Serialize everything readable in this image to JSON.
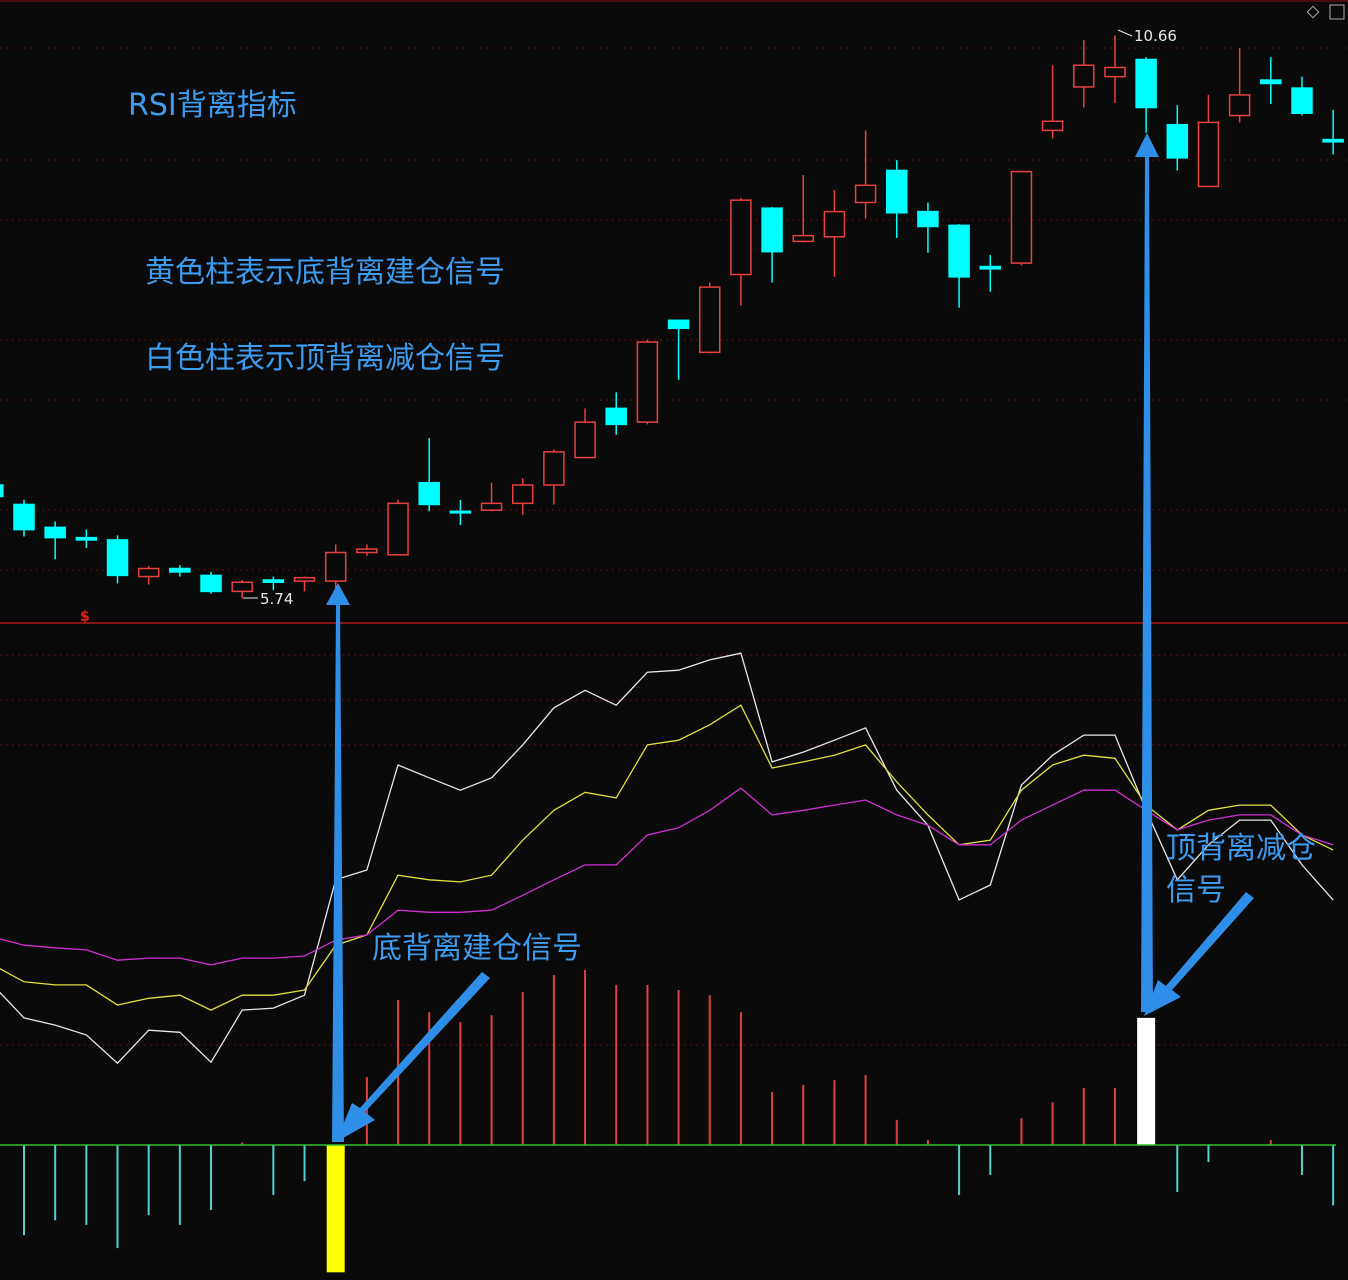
{
  "chart_data": {
    "type": "candlestick",
    "title": "RSI背离指标",
    "annotations": [
      "黄色柱表示底背离建仓信号",
      "白色柱表示顶背离减仓信号",
      "底背离建仓信号",
      "顶背离减仓信号",
      "10.66",
      "5.74",
      "$"
    ],
    "up_color": "#e84040",
    "down_color": "#00ffff",
    "ylim": [
      5.55,
      10.97
    ],
    "open": [
      6.73,
      6.56,
      6.36,
      6.27,
      6.25,
      5.93,
      6.0,
      5.94,
      5.8,
      5.9,
      5.89,
      5.89,
      6.14,
      6.12,
      6.75,
      6.5,
      6.51,
      6.57,
      6.73,
      6.97,
      7.4,
      7.28,
      8.17,
      7.89,
      8.57,
      9.15,
      8.86,
      8.9,
      9.2,
      9.48,
      9.12,
      9.0,
      8.64,
      8.67,
      9.83,
      10.21,
      10.3,
      10.45,
      9.88,
      9.34,
      9.96,
      10.27,
      10.2,
      9.75
    ],
    "high": [
      6.77,
      6.6,
      6.41,
      6.34,
      6.29,
      6.02,
      6.03,
      5.97,
      5.9,
      5.93,
      5.93,
      6.21,
      6.21,
      6.6,
      7.14,
      6.6,
      6.75,
      6.79,
      7.04,
      7.4,
      7.54,
      8.0,
      8.17,
      8.5,
      9.24,
      9.16,
      9.44,
      9.31,
      9.83,
      9.57,
      9.2,
      9.01,
      8.74,
      9.47,
      10.4,
      10.62,
      10.66,
      10.47,
      10.05,
      10.14,
      10.55,
      10.47,
      10.3,
      10.01
    ],
    "low": [
      6.6,
      6.28,
      6.08,
      6.18,
      5.87,
      5.86,
      5.93,
      5.78,
      5.74,
      5.81,
      5.8,
      5.83,
      6.11,
      6.12,
      6.5,
      6.38,
      6.5,
      6.47,
      6.56,
      6.97,
      7.17,
      7.26,
      7.65,
      7.88,
      8.3,
      8.5,
      8.85,
      8.55,
      9.06,
      8.89,
      8.76,
      8.28,
      8.42,
      8.65,
      9.76,
      10.03,
      10.07,
      9.81,
      9.48,
      9.34,
      9.9,
      10.06,
      9.96,
      9.62
    ],
    "close": [
      6.63,
      6.34,
      6.27,
      6.25,
      5.94,
      6.0,
      5.97,
      5.8,
      5.88,
      5.88,
      5.92,
      6.14,
      6.17,
      6.57,
      6.56,
      6.49,
      6.57,
      6.73,
      7.02,
      7.28,
      7.26,
      7.98,
      8.1,
      8.46,
      9.22,
      8.77,
      8.91,
      9.12,
      9.35,
      9.11,
      8.99,
      8.55,
      8.62,
      9.47,
      9.91,
      10.4,
      10.38,
      10.03,
      9.59,
      9.9,
      10.14,
      10.24,
      9.98,
      9.73
    ],
    "indicator": {
      "ylim": [
        -26,
        100
      ],
      "series": [
        {
          "name": "RSI1",
          "color": "#e8e8e8",
          "values": [
            31.1,
            24.7,
            23.3,
            21.4,
            15.9,
            22.3,
            21.9,
            16.1,
            26.2,
            26.6,
            29.1,
            51.5,
            53.4,
            73.8,
            71.3,
            68.9,
            71.3,
            77.7,
            84.9,
            88.3,
            85.4,
            91.8,
            92.2,
            94.2,
            95.5,
            74.4,
            76.3,
            78.6,
            81.0,
            68.9,
            62.1,
            47.6,
            50.5,
            69.9,
            75.7,
            79.6,
            79.6,
            65.0,
            51.5,
            58.3,
            63.1,
            63.1,
            54.4,
            47.6
          ]
        },
        {
          "name": "RSI2",
          "color": "#e0e040",
          "values": [
            35.0,
            31.7,
            31.1,
            31.1,
            27.2,
            28.5,
            29.1,
            26.2,
            29.1,
            29.1,
            30.1,
            38.8,
            40.8,
            52.4,
            51.5,
            51.1,
            52.4,
            59.2,
            65.0,
            68.5,
            67.4,
            77.7,
            78.6,
            81.6,
            85.4,
            73.2,
            74.4,
            75.7,
            77.7,
            70.5,
            64.1,
            58.3,
            59.2,
            68.9,
            73.8,
            75.7,
            75.1,
            66.0,
            61.2,
            65.0,
            66.0,
            66.0,
            60.2,
            57.3
          ]
        },
        {
          "name": "RSI3",
          "color": "#d030d0",
          "values": [
            40.4,
            38.8,
            38.3,
            37.9,
            35.9,
            36.3,
            36.3,
            35.0,
            36.3,
            36.3,
            36.7,
            39.8,
            40.8,
            45.6,
            45.2,
            45.2,
            45.6,
            48.5,
            51.5,
            54.4,
            54.4,
            60.2,
            61.6,
            65.0,
            69.3,
            64.1,
            65.0,
            66.0,
            67.0,
            64.1,
            62.1,
            58.3,
            58.3,
            63.1,
            66.0,
            68.9,
            68.9,
            65.0,
            61.2,
            63.1,
            64.1,
            64.1,
            60.2,
            58.3
          ]
        }
      ],
      "histogram": {
        "pos_color": "#e04040",
        "neg_color": "#50d0d0",
        "values": [
          0,
          -17.5,
          -14.6,
          -15.5,
          -20.0,
          -13.6,
          -15.5,
          -12.6,
          0.5,
          -9.7,
          -7.0,
          null,
          13.2,
          28.2,
          25.8,
          23.9,
          25.2,
          29.7,
          33.0,
          34.0,
          31.1,
          31.1,
          30.1,
          29.1,
          25.8,
          10.3,
          11.7,
          12.6,
          13.6,
          4.9,
          1.0,
          -9.7,
          -5.8,
          5.2,
          8.3,
          11.1,
          11.1,
          null,
          -9.1,
          -3.3,
          0,
          1.0,
          -5.8,
          -11.7
        ]
      },
      "buy_signal": {
        "color": "#ffff00",
        "values": [
          null,
          null,
          null,
          null,
          null,
          null,
          null,
          null,
          null,
          null,
          null,
          -24.7,
          null,
          null,
          null,
          null,
          null,
          null,
          null,
          null,
          null,
          null,
          null,
          null,
          null,
          null,
          null,
          null,
          null,
          null,
          null,
          null,
          null,
          null,
          null,
          null,
          null,
          null,
          null,
          null,
          null,
          null,
          null,
          null
        ]
      },
      "sell_signal": {
        "color": "#ffffff",
        "values": [
          null,
          null,
          null,
          null,
          null,
          null,
          null,
          null,
          null,
          null,
          null,
          null,
          null,
          null,
          null,
          null,
          null,
          null,
          null,
          null,
          null,
          null,
          null,
          null,
          null,
          null,
          null,
          null,
          null,
          null,
          null,
          null,
          null,
          null,
          null,
          null,
          null,
          24.7,
          null,
          null,
          null,
          null,
          null,
          null
        ]
      }
    }
  }
}
